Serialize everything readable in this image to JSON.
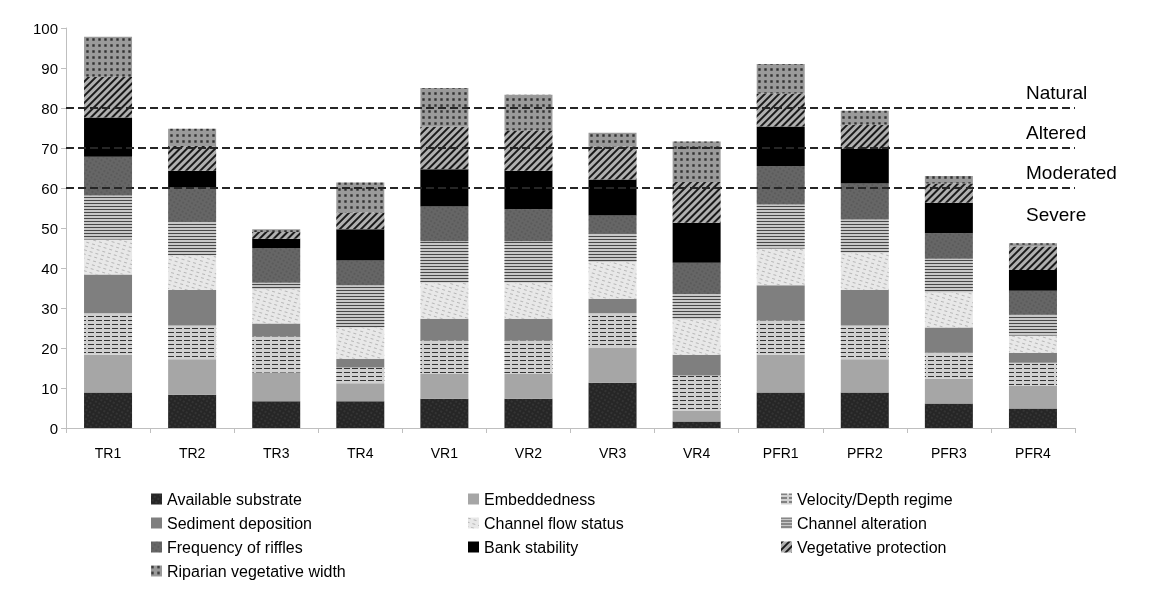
{
  "chart_data": {
    "type": "bar",
    "stacked": true,
    "categories": [
      "TR1",
      "TR2",
      "TR3",
      "TR4",
      "VR1",
      "VR2",
      "VR3",
      "VR4",
      "PFR1",
      "PFR2",
      "PFR3",
      "PFR4"
    ],
    "series": [
      {
        "name": "Available substrate",
        "color": "#262626",
        "values": [
          8.9,
          8.3,
          6.7,
          6.7,
          7.3,
          7.3,
          11.3,
          1.6,
          8.9,
          8.9,
          6.1,
          4.9
        ]
      },
      {
        "name": "Embeddedness",
        "color": "#a6a6a6",
        "values": [
          9.4,
          8.9,
          7.2,
          4.5,
          6.2,
          6.2,
          8.8,
          2.8,
          9.4,
          8.3,
          6.2,
          5.6
        ]
      },
      {
        "name": "Velocity/Depth regime",
        "color": "#d0d0d0",
        "values": [
          10.4,
          8.4,
          9.0,
          3.9,
          8.4,
          8.4,
          8.6,
          8.7,
          8.6,
          8.4,
          6.5,
          5.8
        ]
      },
      {
        "name": "Sediment deposition",
        "color": "#7f7f7f",
        "values": [
          9.7,
          8.9,
          3.2,
          2.2,
          5.4,
          5.4,
          3.6,
          5.2,
          8.8,
          8.9,
          6.3,
          2.5
        ]
      },
      {
        "name": "Channel flow status",
        "color": "#e8e8e8",
        "values": [
          8.7,
          8.6,
          8.6,
          7.8,
          9.0,
          9.0,
          9.2,
          8.8,
          9.2,
          9.3,
          8.8,
          4.3
        ]
      },
      {
        "name": "Channel alteration",
        "color": "#c8c8c8",
        "values": [
          11.0,
          8.4,
          1.6,
          10.6,
          10.4,
          10.4,
          7.2,
          6.4,
          11.0,
          8.3,
          8.4,
          5.2
        ]
      },
      {
        "name": "Frequency of riffles",
        "color": "#666666",
        "values": [
          9.7,
          8.6,
          8.7,
          6.2,
          8.7,
          8.0,
          4.4,
          7.8,
          9.6,
          9.0,
          6.4,
          6.0
        ]
      },
      {
        "name": "Bank stability",
        "color": "#000000",
        "values": [
          9.8,
          4.2,
          2.3,
          7.8,
          9.3,
          9.6,
          9.0,
          10.0,
          9.9,
          8.7,
          7.6,
          5.2
        ]
      },
      {
        "name": "Vegetative protection",
        "color": "#b0b0b0",
        "values": [
          10.2,
          6.2,
          1.7,
          4.2,
          10.6,
          10.1,
          8.3,
          10.2,
          8.2,
          6.0,
          4.8,
          5.9
        ]
      },
      {
        "name": "Riparian vegetative width",
        "color": "#9a9a9a",
        "values": [
          10.0,
          4.3,
          0.7,
          7.5,
          9.7,
          8.9,
          3.4,
          10.1,
          7.4,
          3.5,
          1.9,
          0.8
        ]
      }
    ],
    "ylim": [
      0,
      100
    ],
    "yticks": [
      0,
      10,
      20,
      30,
      40,
      50,
      60,
      70,
      80,
      90,
      100
    ],
    "grid": false,
    "legend": "bottom",
    "ref_lines": [
      {
        "axis": "y",
        "value": 80,
        "label": "Natural",
        "line_style": "dashed",
        "color": "#262626"
      },
      {
        "axis": "y",
        "value": 70,
        "label": "Altered",
        "line_style": "dashed",
        "color": "#262626"
      },
      {
        "axis": "y",
        "value": 60,
        "label": "Moderated",
        "line_style": "dashed",
        "color": "#262626"
      }
    ],
    "annotations": [
      "Severe"
    ]
  }
}
